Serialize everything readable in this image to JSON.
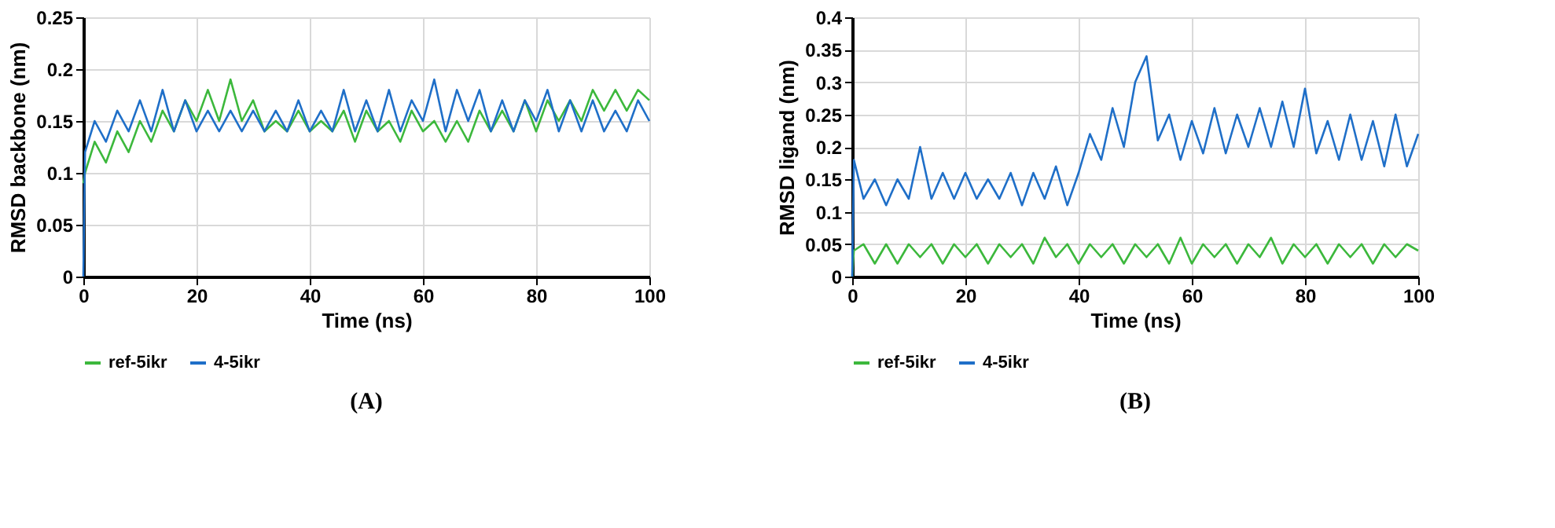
{
  "chart_data": [
    {
      "type": "line",
      "xlabel": "Time (ns)",
      "ylabel": "RMSD backbone (nm)",
      "annotations": [
        "(A)"
      ],
      "xlim": [
        0,
        100
      ],
      "xticks": [
        0,
        20,
        40,
        60,
        80,
        100
      ],
      "ylim": [
        0,
        0.25
      ],
      "yticks": [
        0,
        0.05,
        0.1,
        0.15,
        0.2,
        0.25
      ],
      "grid": true,
      "legend": "bottom",
      "x": [
        0,
        0.3,
        2,
        4,
        6,
        8,
        10,
        12,
        14,
        16,
        18,
        20,
        22,
        24,
        26,
        28,
        30,
        32,
        34,
        36,
        38,
        40,
        42,
        44,
        46,
        48,
        50,
        52,
        54,
        56,
        58,
        60,
        62,
        64,
        66,
        68,
        70,
        72,
        74,
        76,
        78,
        80,
        82,
        84,
        86,
        88,
        90,
        92,
        94,
        96,
        98,
        100
      ],
      "series": [
        {
          "name": "ref-5ikr",
          "color": "#3cb83c",
          "values": [
            0.09,
            0.1,
            0.13,
            0.11,
            0.14,
            0.12,
            0.15,
            0.13,
            0.16,
            0.14,
            0.17,
            0.15,
            0.18,
            0.15,
            0.19,
            0.15,
            0.17,
            0.14,
            0.15,
            0.14,
            0.16,
            0.14,
            0.15,
            0.14,
            0.16,
            0.13,
            0.16,
            0.14,
            0.15,
            0.13,
            0.16,
            0.14,
            0.15,
            0.13,
            0.15,
            0.13,
            0.16,
            0.14,
            0.16,
            0.14,
            0.17,
            0.14,
            0.17,
            0.15,
            0.17,
            0.15,
            0.18,
            0.16,
            0.18,
            0.16,
            0.18,
            0.17
          ]
        },
        {
          "name": "4-5ikr",
          "color": "#1f6fc8",
          "values": [
            0,
            0.12,
            0.15,
            0.13,
            0.16,
            0.14,
            0.17,
            0.14,
            0.18,
            0.14,
            0.17,
            0.14,
            0.16,
            0.14,
            0.16,
            0.14,
            0.16,
            0.14,
            0.16,
            0.14,
            0.17,
            0.14,
            0.16,
            0.14,
            0.18,
            0.14,
            0.17,
            0.14,
            0.18,
            0.14,
            0.17,
            0.15,
            0.19,
            0.14,
            0.18,
            0.15,
            0.18,
            0.14,
            0.17,
            0.14,
            0.17,
            0.15,
            0.18,
            0.14,
            0.17,
            0.14,
            0.17,
            0.14,
            0.16,
            0.14,
            0.17,
            0.15
          ]
        }
      ]
    },
    {
      "type": "line",
      "xlabel": "Time (ns)",
      "ylabel": "RMSD ligand (nm)",
      "annotations": [
        "(B)"
      ],
      "xlim": [
        0,
        100
      ],
      "xticks": [
        0,
        20,
        40,
        60,
        80,
        100
      ],
      "ylim": [
        0,
        0.4
      ],
      "yticks": [
        0,
        0.05,
        0.1,
        0.15,
        0.2,
        0.25,
        0.3,
        0.35,
        0.4
      ],
      "grid": true,
      "legend": "bottom",
      "x": [
        0,
        0.3,
        2,
        4,
        6,
        8,
        10,
        12,
        14,
        16,
        18,
        20,
        22,
        24,
        26,
        28,
        30,
        32,
        34,
        36,
        38,
        40,
        42,
        44,
        46,
        48,
        50,
        52,
        54,
        56,
        58,
        60,
        62,
        64,
        66,
        68,
        70,
        72,
        74,
        76,
        78,
        80,
        82,
        84,
        86,
        88,
        90,
        92,
        94,
        96,
        98,
        100
      ],
      "series": [
        {
          "name": "ref-5ikr",
          "color": "#3cb83c",
          "values": [
            0,
            0.04,
            0.05,
            0.02,
            0.05,
            0.02,
            0.05,
            0.03,
            0.05,
            0.02,
            0.05,
            0.03,
            0.05,
            0.02,
            0.05,
            0.03,
            0.05,
            0.02,
            0.06,
            0.03,
            0.05,
            0.02,
            0.05,
            0.03,
            0.05,
            0.02,
            0.05,
            0.03,
            0.05,
            0.02,
            0.06,
            0.02,
            0.05,
            0.03,
            0.05,
            0.02,
            0.05,
            0.03,
            0.06,
            0.02,
            0.05,
            0.03,
            0.05,
            0.02,
            0.05,
            0.03,
            0.05,
            0.02,
            0.05,
            0.03,
            0.05,
            0.04
          ]
        },
        {
          "name": "4-5ikr",
          "color": "#1f6fc8",
          "values": [
            0,
            0.18,
            0.12,
            0.15,
            0.11,
            0.15,
            0.12,
            0.2,
            0.12,
            0.16,
            0.12,
            0.16,
            0.12,
            0.15,
            0.12,
            0.16,
            0.11,
            0.16,
            0.12,
            0.17,
            0.11,
            0.16,
            0.22,
            0.18,
            0.26,
            0.2,
            0.3,
            0.34,
            0.21,
            0.25,
            0.18,
            0.24,
            0.19,
            0.26,
            0.19,
            0.25,
            0.2,
            0.26,
            0.2,
            0.27,
            0.2,
            0.29,
            0.19,
            0.24,
            0.18,
            0.25,
            0.18,
            0.24,
            0.17,
            0.25,
            0.17,
            0.22
          ]
        }
      ]
    }
  ]
}
